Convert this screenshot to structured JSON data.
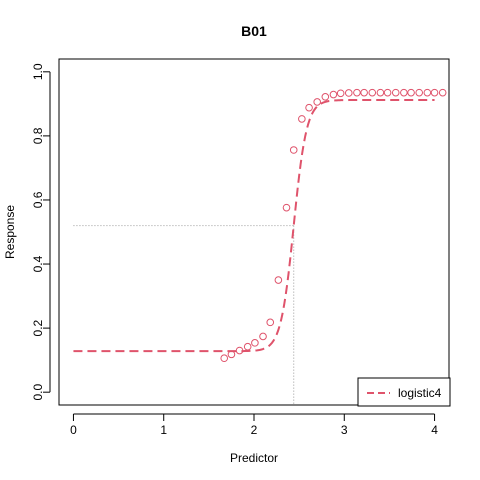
{
  "chart_data": {
    "type": "scatter",
    "title": "B01",
    "xlabel": "Predictor",
    "ylabel": "Response",
    "xlim": [
      -0.16,
      4.16
    ],
    "ylim": [
      -0.04,
      1.04
    ],
    "x_ticks": [
      0,
      1,
      2,
      3,
      4
    ],
    "y_ticks": [
      0.0,
      0.2,
      0.4,
      0.6,
      0.8,
      1.0
    ],
    "x_tick_labels": [
      "0",
      "1",
      "2",
      "3",
      "4"
    ],
    "y_tick_labels": [
      "0.0",
      "0.2",
      "0.4",
      "0.6",
      "0.8",
      "1.0"
    ],
    "grid": false,
    "legend_position": "bottom-right",
    "color": "#DF536B",
    "series": [
      {
        "name": "logistic4",
        "kind": "points",
        "x": [
          1.67,
          1.75,
          1.84,
          1.93,
          2.01,
          2.1,
          2.18,
          2.27,
          2.36,
          2.44,
          2.53,
          2.61,
          2.7,
          2.79,
          2.88,
          2.96,
          3.05,
          3.14,
          3.22,
          3.31,
          3.4,
          3.48,
          3.57,
          3.66,
          3.74,
          3.83,
          3.92,
          4.0,
          4.09
        ],
        "y": [
          0.106,
          0.118,
          0.13,
          0.142,
          0.154,
          0.174,
          0.218,
          0.35,
          0.576,
          0.756,
          0.853,
          0.888,
          0.906,
          0.922,
          0.929,
          0.933,
          0.934,
          0.935,
          0.935,
          0.935,
          0.935,
          0.935,
          0.935,
          0.935,
          0.935,
          0.935,
          0.935,
          0.935,
          0.935
        ]
      },
      {
        "name": "logistic4",
        "kind": "fitted-curve",
        "model": "4-parameter logistic",
        "bottom": 0.128,
        "top": 0.912,
        "midpoint": 2.44,
        "slope": 14.0,
        "x_range": [
          0,
          4
        ]
      }
    ],
    "reference_lines": {
      "x": 2.44,
      "y": 0.52
    },
    "legend": {
      "label": "logistic4"
    }
  }
}
